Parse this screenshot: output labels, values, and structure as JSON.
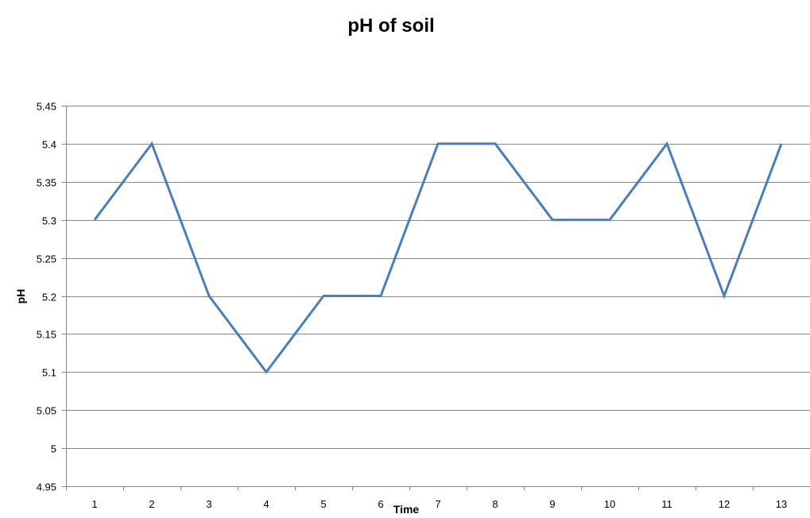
{
  "chart_data": {
    "type": "line",
    "title": "pH of soil",
    "xlabel": "Time",
    "ylabel": "pH",
    "categories": [
      "1",
      "2",
      "3",
      "4",
      "5",
      "6",
      "7",
      "8",
      "9",
      "10",
      "11",
      "12",
      "13"
    ],
    "series": [
      {
        "values": [
          5.3,
          5.4,
          5.2,
          5.1,
          5.2,
          5.2,
          5.4,
          5.4,
          5.3,
          5.3,
          5.4,
          5.2,
          5.4
        ],
        "color": "#4a7ebb"
      }
    ],
    "ylim": [
      4.95,
      5.45
    ],
    "yticks": [
      "4.95",
      "5",
      "5.05",
      "5.1",
      "5.15",
      "5.2",
      "5.25",
      "5.3",
      "5.35",
      "5.4",
      "5.45"
    ],
    "grid": true,
    "legend": "none"
  },
  "colors": {
    "series": "#4a7ebb",
    "gridline": "#868686",
    "text": "#000000",
    "background": "#ffffff"
  }
}
